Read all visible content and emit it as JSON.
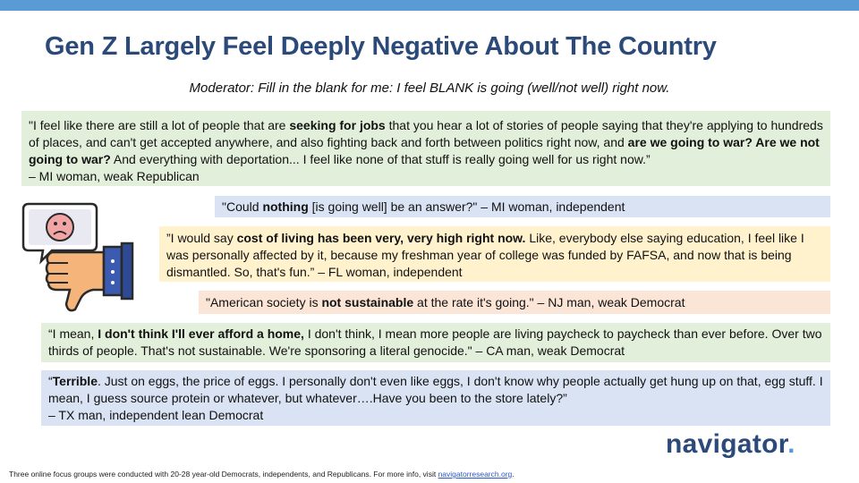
{
  "title": "Gen Z Largely Feel Deeply Negative About The Country",
  "moderator": "Moderator: Fill in the blank for me: I feel BLANK is going (well/not well) right now.",
  "quotes": {
    "q1": {
      "a": "\"I feel like there are still a lot of people that are ",
      "b": "seeking for jobs",
      "c": " that you hear a lot of stories of people saying that they're applying to hundreds of places, and can't get accepted anywhere, and also fighting back and forth between politics right now, and ",
      "d": "are we going to war? Are we not going to war?",
      "e": " And everything with deportation... I feel like none of that stuff is really going well for us right now.”",
      "attr": "– MI woman, weak Republican"
    },
    "q2": {
      "a": "\"Could ",
      "b": "nothing",
      "c": " [is going well] be an answer?\" – MI woman, independent"
    },
    "q3": {
      "a": "”I would say ",
      "b": "cost of living has been very, very high right now.",
      "c": " Like, everybody else saying education, I feel like I was personally affected by it, because my freshman year of college was funded by FAFSA, and now that is being dismantled. So, that's fun.” – FL woman, independent"
    },
    "q4": {
      "a": "\"American society is ",
      "b": "not sustainable",
      "c": " at the rate it's going.\" – NJ man, weak Democrat"
    },
    "q5": {
      "a": "“I mean, ",
      "b": "I don't think I'll ever afford a home,",
      "c": " I don't think, I mean more people are living paycheck to paycheck than ever before. Over two thirds of people. That's not sustainable. We're sponsoring a literal genocide.\" – CA man, weak Democrat"
    },
    "q6": {
      "a": "“",
      "b": "Terrible",
      "c": ". Just on eggs, the price of eggs. I personally don't even like eggs, I don't know why people actually get hung up on that, egg stuff. I mean, I guess source protein or whatever, but whatever….Have you been to the store lately?”",
      "attr": "– TX man, independent lean Democrat"
    }
  },
  "logo": {
    "text": "navigator",
    "dot": "."
  },
  "footer": {
    "text": "Three online focus groups were conducted with 20-28 year-old Democrats, independents, and Republicans. For more info, visit ",
    "link": "navigatorresearch.org",
    "end": "."
  },
  "icon": "thumbs-down-sad-face-icon",
  "colors": {
    "title": "#2b4a7a",
    "topbar": "#5b9bd5",
    "green": "#e2efda",
    "blue": "#dae3f3",
    "yellow": "#fff2cc",
    "peach": "#fbe5d6"
  }
}
